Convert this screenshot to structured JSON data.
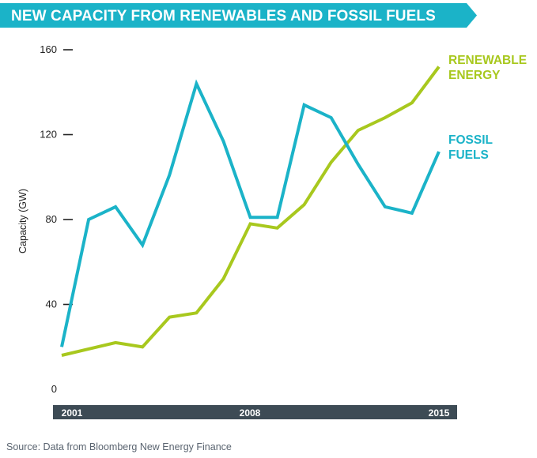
{
  "title": "NEW CAPACITY FROM RENEWABLES AND FOSSIL FUELS",
  "source": "Source: Data from Bloomberg New Energy Finance",
  "colors": {
    "banner": "#1bb3c8",
    "renewable": "#a8c81e",
    "fossil": "#1bb3c8",
    "axis_bar": "#3d4b55",
    "axis_text": "#ffffff",
    "tick_text": "#222222"
  },
  "chart_data": {
    "type": "line",
    "title": "NEW CAPACITY FROM RENEWABLES AND FOSSIL FUELS",
    "ylabel": "Capacity (GW)",
    "xlabel": "",
    "ylim": [
      0,
      160
    ],
    "yticks": [
      0,
      40,
      80,
      120,
      160
    ],
    "x": [
      2001,
      2002,
      2003,
      2004,
      2005,
      2006,
      2007,
      2008,
      2009,
      2010,
      2011,
      2012,
      2013,
      2014,
      2015
    ],
    "xticks": [
      "2001",
      "2008",
      "2015"
    ],
    "grid": false,
    "series": [
      {
        "name": "RENEWABLE ENERGY",
        "label_lines": [
          "RENEWABLE",
          "ENERGY"
        ],
        "values": [
          16,
          19,
          22,
          20,
          34,
          36,
          52,
          78,
          76,
          87,
          107,
          122,
          128,
          135,
          152
        ]
      },
      {
        "name": "FOSSIL FUELS",
        "label_lines": [
          "FOSSIL",
          "FUELS"
        ],
        "values": [
          20,
          80,
          86,
          68,
          101,
          144,
          117,
          81,
          81,
          134,
          128,
          106,
          86,
          83,
          112
        ]
      }
    ]
  }
}
